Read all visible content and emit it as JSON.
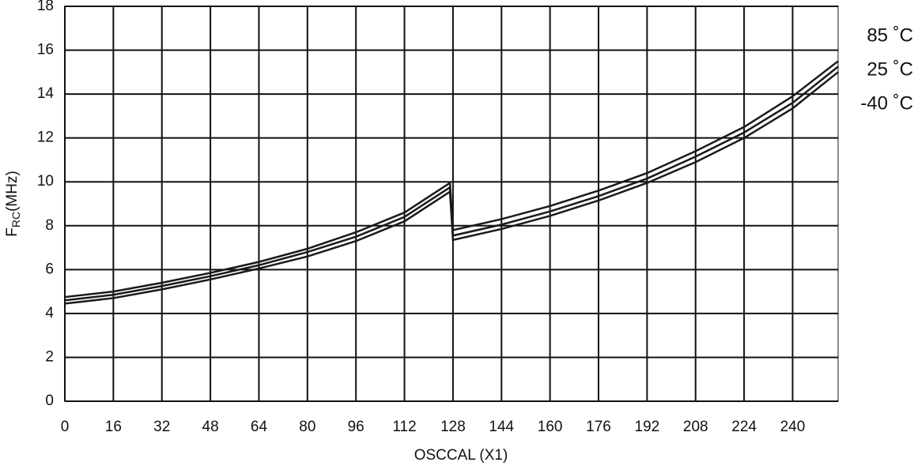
{
  "chart_data": {
    "type": "line",
    "x_label": "OSCCAL (X1)",
    "y_label": {
      "main": "F",
      "sub": "RC",
      "unit": "(MHz)"
    },
    "x": [
      0,
      16,
      32,
      48,
      64,
      80,
      96,
      112,
      127,
      128,
      144,
      160,
      176,
      192,
      208,
      224,
      240,
      255
    ],
    "series": [
      {
        "name": "85 ˚C",
        "color": "#1a1a1a",
        "values": [
          4.75,
          5.0,
          5.4,
          5.85,
          6.35,
          6.95,
          7.7,
          8.6,
          9.95,
          7.8,
          8.3,
          8.9,
          9.6,
          10.4,
          11.4,
          12.5,
          13.9,
          15.5
        ]
      },
      {
        "name": "25 ˚C",
        "color": "#1a1a1a",
        "values": [
          4.6,
          4.85,
          5.25,
          5.7,
          6.2,
          6.8,
          7.5,
          8.4,
          9.75,
          7.55,
          8.05,
          8.65,
          9.35,
          10.15,
          11.15,
          12.25,
          13.6,
          15.25
        ]
      },
      {
        "name": "-40 ˚C",
        "color": "#1a1a1a",
        "values": [
          4.45,
          4.7,
          5.1,
          5.55,
          6.05,
          6.6,
          7.3,
          8.2,
          9.55,
          7.35,
          7.85,
          8.45,
          9.15,
          9.95,
          10.9,
          12.0,
          13.35,
          15.0
        ]
      }
    ],
    "xlim": [
      0,
      255
    ],
    "ylim": [
      0,
      18
    ],
    "xticks": [
      0,
      16,
      32,
      48,
      64,
      80,
      96,
      112,
      128,
      144,
      160,
      176,
      192,
      208,
      224,
      240
    ],
    "yticks": [
      0,
      2,
      4,
      6,
      8,
      10,
      12,
      14,
      16,
      18
    ],
    "grid": true
  }
}
